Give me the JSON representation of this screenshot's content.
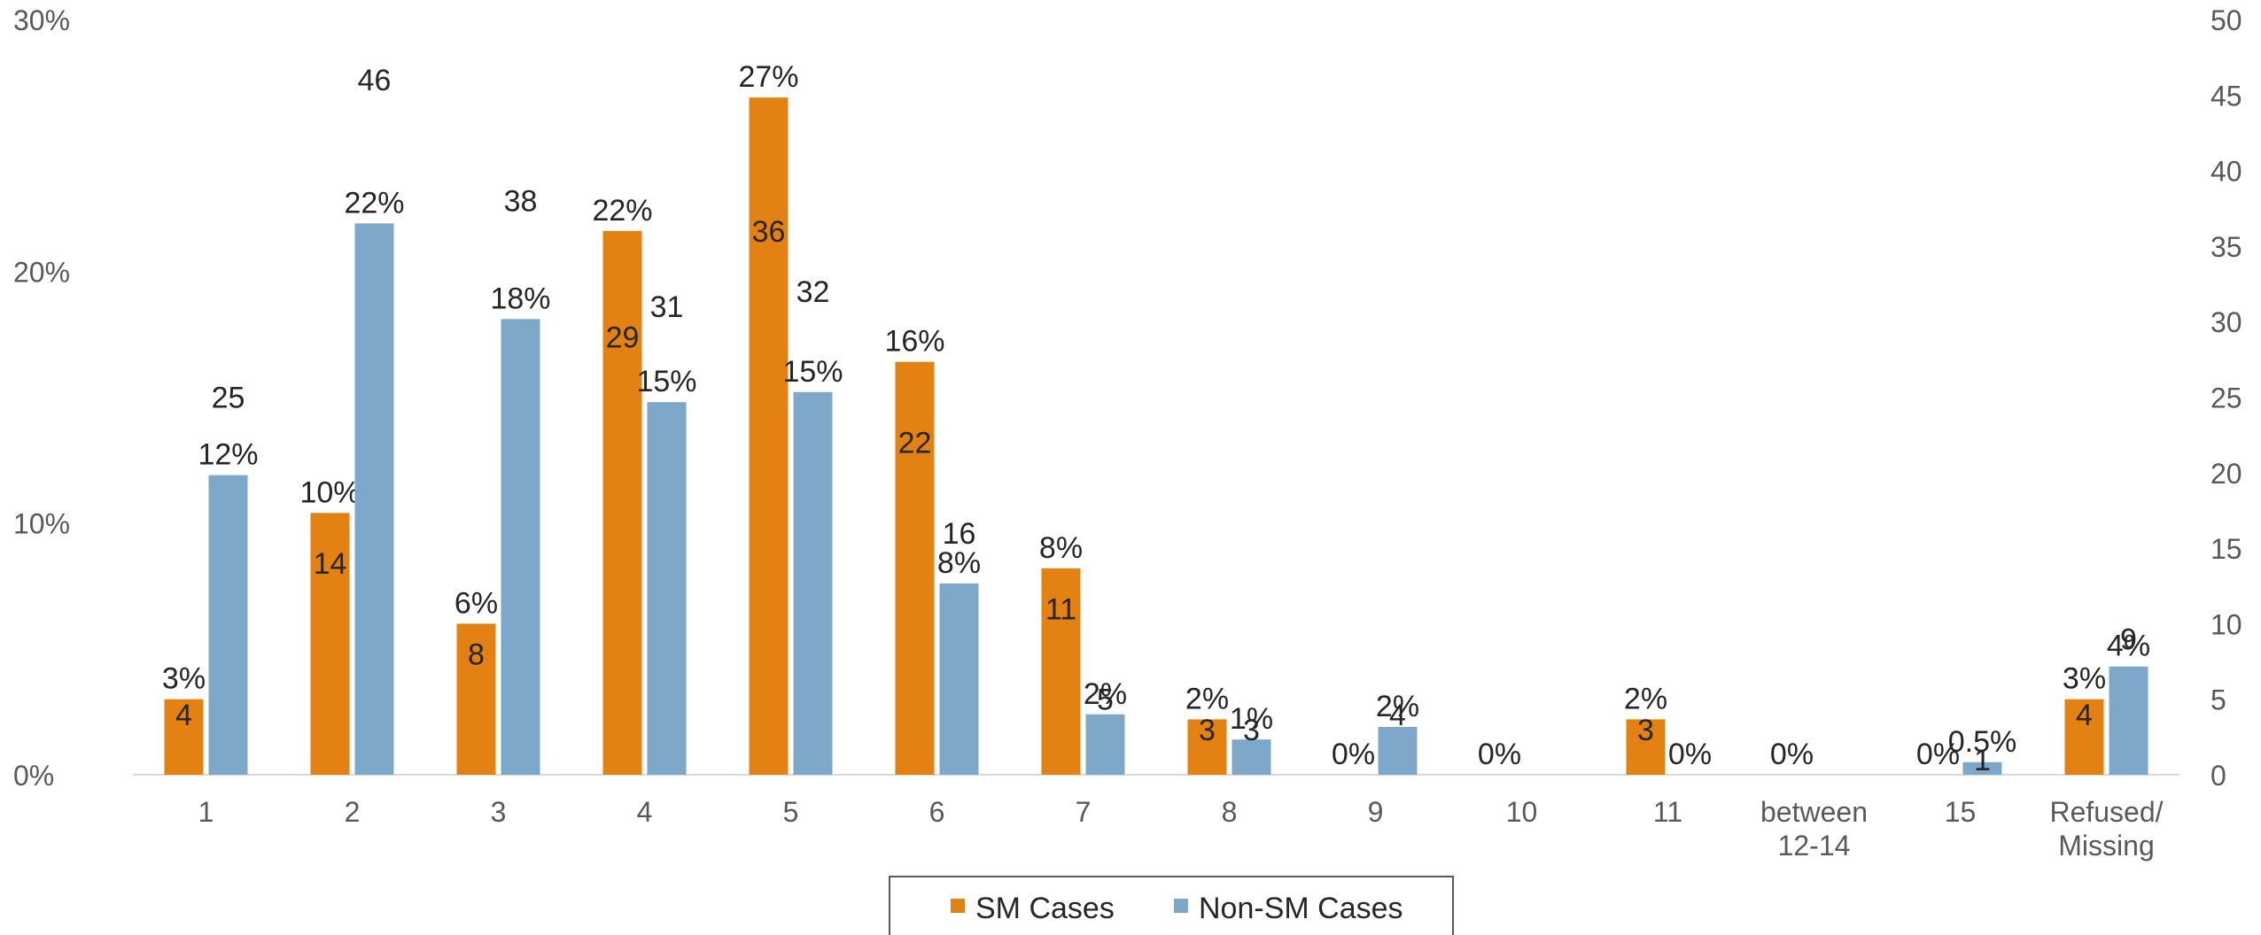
{
  "chart_data": {
    "type": "bar",
    "categories": [
      "1",
      "2",
      "3",
      "4",
      "5",
      "6",
      "7",
      "8",
      "9",
      "10",
      "11",
      "between\n12-14",
      "15",
      "Refused/\nMissing"
    ],
    "series": [
      {
        "name": "SM Cases",
        "color": "#E38213",
        "values": [
          3,
          10.4,
          6,
          21.6,
          26.9,
          16.4,
          8.2,
          2.2,
          0,
          0,
          2.2,
          0,
          0,
          3
        ],
        "value_labels": [
          "3%",
          "10%",
          "6%",
          "22%",
          "27%",
          "16%",
          "8%",
          "2%",
          "0%",
          "0%",
          "2%",
          "0%",
          "0%",
          "3%"
        ],
        "counts": [
          4,
          14,
          8,
          29,
          36,
          22,
          11,
          3,
          null,
          null,
          3,
          null,
          null,
          4
        ]
      },
      {
        "name": "Non-SM Cases",
        "color": "#7EA8CA",
        "values": [
          11.9,
          21.9,
          18.1,
          14.8,
          15.2,
          7.6,
          2.4,
          1.4,
          1.9,
          0,
          0,
          0,
          0.5,
          4.3
        ],
        "value_labels": [
          "12%",
          "22%",
          "18%",
          "15%",
          "15%",
          "8%",
          "2%",
          "1%",
          "2%",
          "",
          "0%",
          "",
          "0.5%",
          "4%"
        ],
        "counts": [
          25,
          46,
          38,
          31,
          32,
          16,
          5,
          3,
          4,
          null,
          null,
          null,
          1,
          9
        ]
      }
    ],
    "y_left": {
      "ticks": [
        "0%",
        "10%",
        "20%",
        "30%"
      ],
      "range": [
        0,
        30
      ]
    },
    "y_right": {
      "ticks": [
        "0",
        "5",
        "10",
        "15",
        "20",
        "25",
        "30",
        "35",
        "40",
        "45",
        "50"
      ],
      "range": [
        0,
        50
      ]
    },
    "legend": {
      "position": "bottom-center",
      "entries": [
        "SM Cases",
        "Non-SM Cases"
      ]
    },
    "grid": false
  }
}
